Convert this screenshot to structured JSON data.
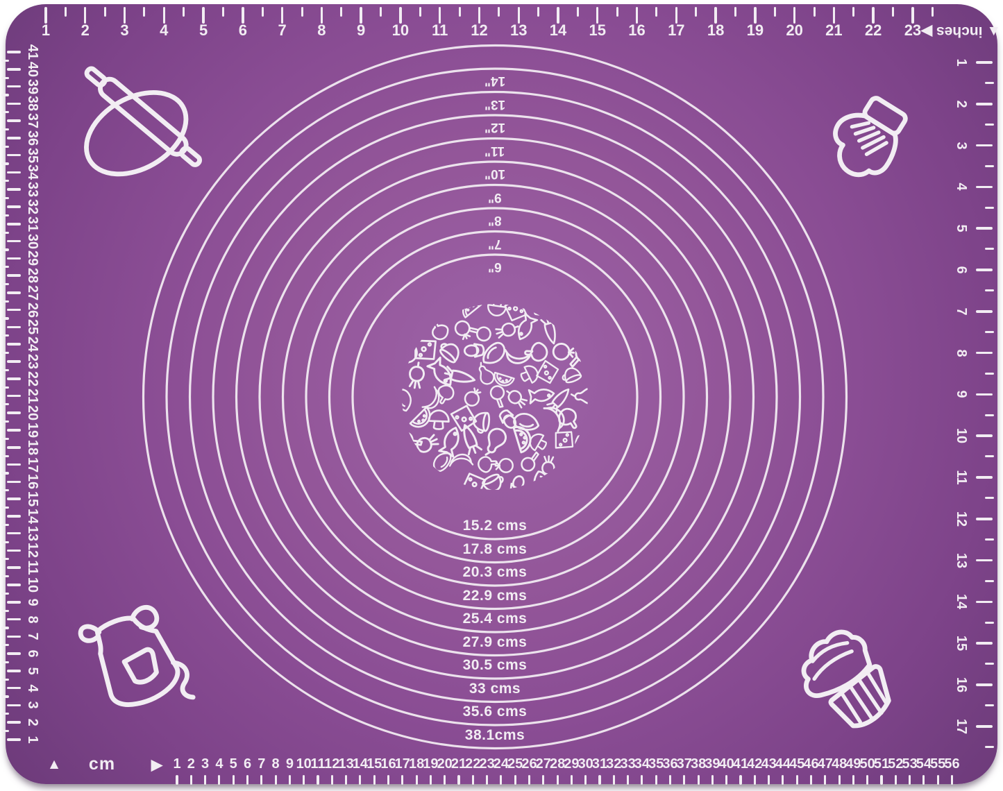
{
  "product": {
    "name": "purple silicone pastry baking measurement mat"
  },
  "colors": {
    "mat_purple_center": "#9d63a8",
    "mat_purple_mid": "#8a4d94",
    "mat_purple_edge": "#6d3a7a",
    "marking_white": "#f2edf3",
    "background": "#ffffff"
  },
  "rulers": {
    "top": {
      "unit": "inches",
      "display": "▲ inches ▶",
      "numbers": [
        "1",
        "2",
        "3",
        "4",
        "5",
        "6",
        "7",
        "8",
        "9",
        "10",
        "11",
        "12",
        "13",
        "14",
        "15",
        "16",
        "17",
        "18",
        "19",
        "20",
        "21",
        "22",
        "23"
      ]
    },
    "bottom": {
      "unit": "cm",
      "marker_triangle": "▲",
      "marker_arrow": "▶",
      "numbers": [
        "1",
        "2",
        "3",
        "4",
        "5",
        "6",
        "7",
        "8",
        "9",
        "10",
        "11",
        "12",
        "13",
        "14",
        "15",
        "16",
        "17",
        "18",
        "19",
        "20",
        "21",
        "22",
        "23",
        "24",
        "25",
        "26",
        "27",
        "28",
        "29",
        "30",
        "31",
        "32",
        "33",
        "34",
        "35",
        "36",
        "37",
        "38",
        "39",
        "40",
        "41",
        "42",
        "43",
        "44",
        "45",
        "46",
        "47",
        "48",
        "49",
        "50",
        "51",
        "52",
        "53",
        "54",
        "55",
        "56"
      ]
    },
    "left": {
      "numbers": [
        "41",
        "40",
        "39",
        "38",
        "37",
        "36",
        "35",
        "34",
        "33",
        "32",
        "31",
        "30",
        "29",
        "28",
        "27",
        "26",
        "25",
        "24",
        "23",
        "22",
        "21",
        "20",
        "19",
        "18",
        "17",
        "16",
        "15",
        "14",
        "13",
        "12",
        "11",
        "10",
        "9",
        "8",
        "7",
        "6",
        "5",
        "4",
        "3",
        "2",
        "1"
      ]
    },
    "right": {
      "numbers": [
        "1",
        "2",
        "3",
        "4",
        "5",
        "6",
        "7",
        "8",
        "9",
        "10",
        "11",
        "12",
        "13",
        "14",
        "15",
        "16",
        "17"
      ]
    }
  },
  "circles": {
    "inch_labels": [
      "14\"",
      "13\"",
      "12\"",
      "11\"",
      "10\"",
      "9\"",
      "8\"",
      "7\"",
      "6\""
    ],
    "cm_labels": [
      "15.2 cms",
      "17.8 cms",
      "20.3 cms",
      "22.9 cms",
      "25.4 cms",
      "27.9 cms",
      "30.5 cms",
      "33 cms",
      "35.6 cms",
      "38.1cms"
    ]
  },
  "icons": {
    "top_left": "rolling-pin-and-dough",
    "top_right": "oven-mitt",
    "bottom_left": "apron",
    "bottom_right": "cupcake",
    "center": "food-doodle-pattern",
    "center_pattern_items": [
      "fish",
      "carrot",
      "pear",
      "watermelon-slice",
      "mushroom",
      "cheese-wedge",
      "cup",
      "egg-in-cup",
      "steak",
      "banana",
      "drumstick",
      "tomato",
      "pan",
      "beet"
    ]
  }
}
